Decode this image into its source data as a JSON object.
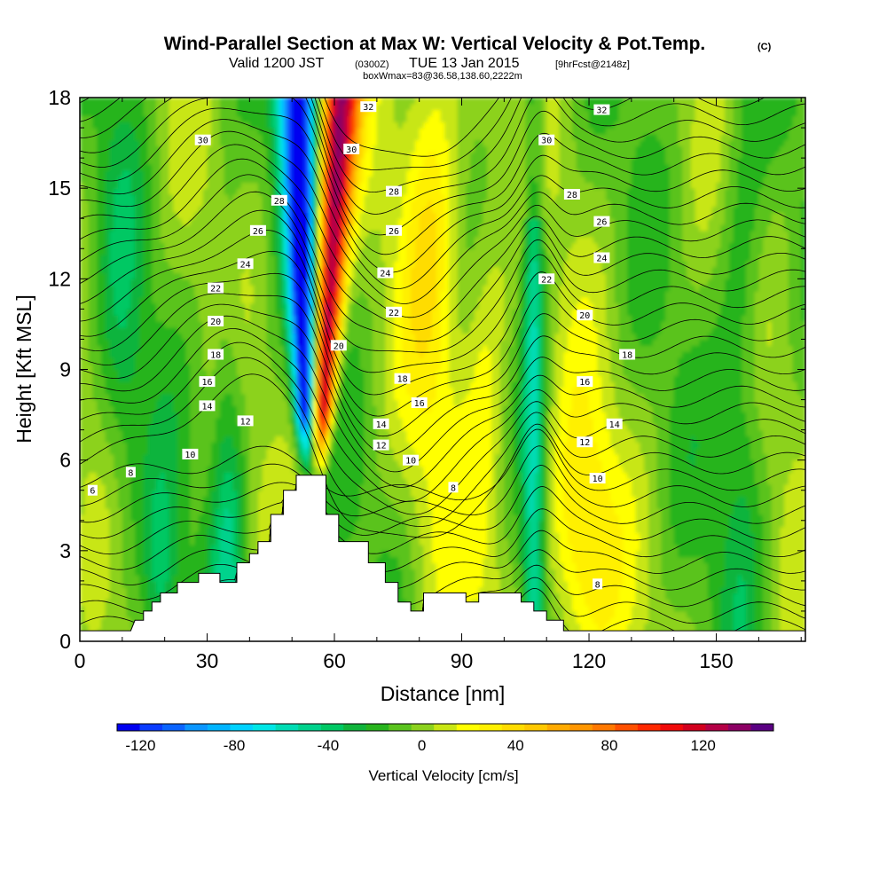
{
  "titles": {
    "main": "Wind-Parallel Section at Max W: Vertical Velocity & Pot.Temp.",
    "main_suffix": "(C)",
    "valid_prefix": "Valid 1200 JST",
    "valid_utc": "(0300Z)",
    "valid_date": "TUE 13 Jan 2015",
    "forecast": "[9hrFcst@2148z]",
    "box": "boxWmax=83@36.58,138.60,2222m"
  },
  "chart_data": {
    "type": "heatmap",
    "xlabel": "Distance [nm]",
    "ylabel": "Height [Kft MSL]",
    "xlim": [
      0,
      171
    ],
    "ylim": [
      0,
      18
    ],
    "x_ticks": [
      0,
      30,
      60,
      90,
      120,
      150
    ],
    "y_ticks": [
      0,
      3,
      6,
      9,
      12,
      15,
      18
    ],
    "colorbar": {
      "title": "Vertical Velocity [cm/s]",
      "tick_values": [
        -120,
        -80,
        -40,
        0,
        40,
        80,
        120
      ],
      "levels": [
        -130,
        -120,
        -110,
        -100,
        -90,
        -80,
        -70,
        -60,
        -50,
        -40,
        -30,
        -20,
        -10,
        0,
        10,
        20,
        30,
        40,
        50,
        60,
        70,
        80,
        90,
        100,
        110,
        120,
        130,
        140,
        150
      ],
      "colors": [
        "#0000f0",
        "#0a3cff",
        "#0a64ff",
        "#0a96ff",
        "#00b4ff",
        "#00d2ff",
        "#00e6e6",
        "#00dcb4",
        "#00d28c",
        "#00c864",
        "#10b43c",
        "#28b41e",
        "#5ac31e",
        "#8cd21e",
        "#c8e614",
        "#ffff00",
        "#fff000",
        "#ffdc00",
        "#ffc800",
        "#ffaa00",
        "#ff9600",
        "#ff7800",
        "#ff5000",
        "#ff2800",
        "#f00a0a",
        "#d2001e",
        "#b40046",
        "#8c0064",
        "#5a0082"
      ]
    },
    "terrain_profile": [
      [
        0,
        0.35
      ],
      [
        8,
        0.35
      ],
      [
        12,
        0.35
      ],
      [
        13,
        0.7
      ],
      [
        15,
        0.7
      ],
      [
        15,
        1.0
      ],
      [
        17,
        1.0
      ],
      [
        17,
        1.3
      ],
      [
        19,
        1.3
      ],
      [
        19,
        1.6
      ],
      [
        23,
        1.6
      ],
      [
        23,
        1.95
      ],
      [
        28,
        1.95
      ],
      [
        28,
        2.25
      ],
      [
        33,
        2.25
      ],
      [
        33,
        1.95
      ],
      [
        37,
        1.95
      ],
      [
        37,
        2.6
      ],
      [
        40,
        2.6
      ],
      [
        40,
        2.9
      ],
      [
        42,
        2.9
      ],
      [
        42,
        3.3
      ],
      [
        45,
        3.3
      ],
      [
        45,
        4.2
      ],
      [
        48,
        4.2
      ],
      [
        48,
        5.0
      ],
      [
        51,
        5.0
      ],
      [
        51,
        5.5
      ],
      [
        58,
        5.5
      ],
      [
        58,
        4.2
      ],
      [
        61,
        4.2
      ],
      [
        61,
        3.3
      ],
      [
        68,
        3.3
      ],
      [
        68,
        2.6
      ],
      [
        72,
        2.6
      ],
      [
        72,
        1.95
      ],
      [
        75,
        1.95
      ],
      [
        75,
        1.3
      ],
      [
        78,
        1.3
      ],
      [
        78,
        1.0
      ],
      [
        81,
        1.0
      ],
      [
        81,
        1.6
      ],
      [
        91,
        1.6
      ],
      [
        91,
        1.3
      ],
      [
        94,
        1.3
      ],
      [
        94,
        1.6
      ],
      [
        104,
        1.6
      ],
      [
        104,
        1.3
      ],
      [
        107,
        1.3
      ],
      [
        107,
        1.0
      ],
      [
        110,
        1.0
      ],
      [
        110,
        0.7
      ],
      [
        114,
        0.7
      ],
      [
        114,
        0.35
      ],
      [
        120,
        0.35
      ],
      [
        171,
        0.35
      ]
    ],
    "theta_contour_labels": [
      {
        "label": "6",
        "x": 3,
        "y": 5.0
      },
      {
        "label": "8",
        "x": 12,
        "y": 5.6
      },
      {
        "label": "10",
        "x": 26,
        "y": 6.2
      },
      {
        "label": "12",
        "x": 39,
        "y": 7.3
      },
      {
        "label": "14",
        "x": 30,
        "y": 7.8
      },
      {
        "label": "16",
        "x": 30,
        "y": 8.6
      },
      {
        "label": "18",
        "x": 32,
        "y": 9.5
      },
      {
        "label": "20",
        "x": 32,
        "y": 10.6
      },
      {
        "label": "22",
        "x": 32,
        "y": 11.7
      },
      {
        "label": "24",
        "x": 39,
        "y": 12.5
      },
      {
        "label": "26",
        "x": 42,
        "y": 13.6
      },
      {
        "label": "28",
        "x": 47,
        "y": 14.6
      },
      {
        "label": "30",
        "x": 29,
        "y": 16.6
      },
      {
        "label": "30",
        "x": 64,
        "y": 16.3
      },
      {
        "label": "32",
        "x": 68,
        "y": 17.7
      },
      {
        "label": "28",
        "x": 74,
        "y": 14.9
      },
      {
        "label": "26",
        "x": 74,
        "y": 13.6
      },
      {
        "label": "24",
        "x": 72,
        "y": 12.2
      },
      {
        "label": "22",
        "x": 74,
        "y": 10.9
      },
      {
        "label": "20",
        "x": 61,
        "y": 9.8
      },
      {
        "label": "18",
        "x": 76,
        "y": 8.7
      },
      {
        "label": "16",
        "x": 80,
        "y": 7.9
      },
      {
        "label": "14",
        "x": 71,
        "y": 7.2
      },
      {
        "label": "12",
        "x": 71,
        "y": 6.5
      },
      {
        "label": "10",
        "x": 78,
        "y": 6.0
      },
      {
        "label": "8",
        "x": 88,
        "y": 5.1
      },
      {
        "label": "30",
        "x": 110,
        "y": 16.6
      },
      {
        "label": "32",
        "x": 123,
        "y": 17.6
      },
      {
        "label": "28",
        "x": 116,
        "y": 14.8
      },
      {
        "label": "26",
        "x": 123,
        "y": 13.9
      },
      {
        "label": "24",
        "x": 123,
        "y": 12.7
      },
      {
        "label": "22",
        "x": 110,
        "y": 12.0
      },
      {
        "label": "20",
        "x": 119,
        "y": 10.8
      },
      {
        "label": "18",
        "x": 129,
        "y": 9.5
      },
      {
        "label": "16",
        "x": 119,
        "y": 8.6
      },
      {
        "label": "14",
        "x": 126,
        "y": 7.2
      },
      {
        "label": "12",
        "x": 119,
        "y": 6.6
      },
      {
        "label": "10",
        "x": 122,
        "y": 5.4
      },
      {
        "label": "8",
        "x": 122,
        "y": 1.9
      }
    ]
  }
}
